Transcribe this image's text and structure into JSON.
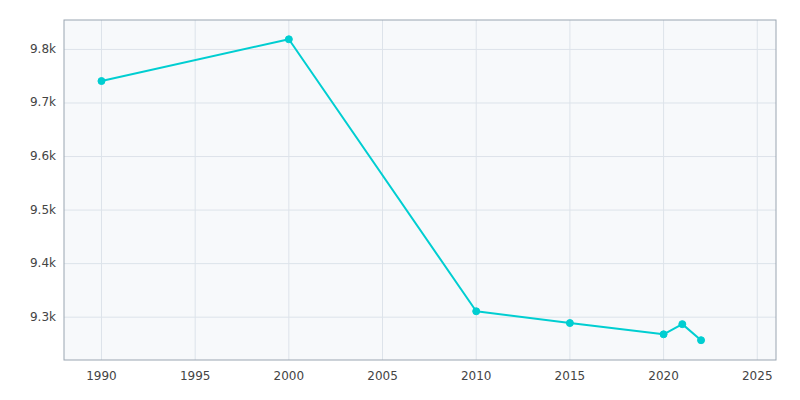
{
  "chart_data": {
    "type": "line",
    "x": [
      1990,
      2000,
      2010,
      2015,
      2020,
      2021,
      2022
    ],
    "values": [
      9741,
      9819,
      9311,
      9289,
      9268,
      9287,
      9257
    ],
    "color": "#00CED1",
    "marker": "circle",
    "xlim": [
      1988,
      2026
    ],
    "ylim": [
      9220,
      9855
    ],
    "xticks": [
      1990,
      1995,
      2000,
      2005,
      2010,
      2015,
      2020,
      2025
    ],
    "yticks": [
      {
        "value": 9300,
        "label": "9.3k"
      },
      {
        "value": 9400,
        "label": "9.4k"
      },
      {
        "value": 9500,
        "label": "9.5k"
      },
      {
        "value": 9600,
        "label": "9.6k"
      },
      {
        "value": 9700,
        "label": "9.7k"
      },
      {
        "value": 9800,
        "label": "9.8k"
      }
    ],
    "grid": true
  }
}
